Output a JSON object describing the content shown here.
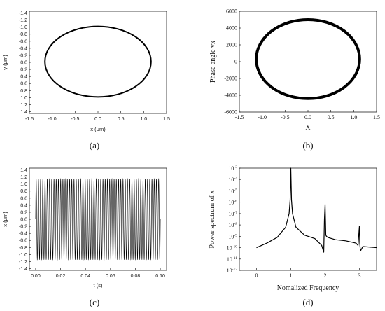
{
  "chart_data": [
    {
      "id": "a",
      "type": "line",
      "caption": "(a)",
      "xlabel": "x (μm)",
      "ylabel": "y (μm)",
      "xlim": [
        -1.5,
        1.5
      ],
      "ylim": [
        1.45,
        -1.45
      ],
      "y_axis_inverted": true,
      "xticks": [
        -1.5,
        -1.0,
        -0.5,
        0.0,
        0.5,
        1.0,
        1.5
      ],
      "xtick_labels": [
        "-1.5",
        "-1.0",
        "-0.5",
        "0.0",
        "0.5",
        "1.0",
        "1.5"
      ],
      "yticks": [
        -1.4,
        -1.2,
        -1.0,
        -0.8,
        -0.6,
        -0.4,
        -0.2,
        0.0,
        0.2,
        0.4,
        0.6,
        0.8,
        1.0,
        1.2,
        1.4
      ],
      "ytick_labels": [
        "-1.4",
        "-1.2",
        "-1.0",
        "-0.8",
        "-0.6",
        "-0.4",
        "-0.2",
        "0.0",
        "0.2",
        "0.4",
        "0.6",
        "0.8",
        "1.0",
        "1.2",
        "1.4"
      ],
      "series": [
        {
          "shape": "ellipse",
          "center": [
            0.0,
            -0.02
          ],
          "x_radius": 1.16,
          "y_radius": 1.0
        }
      ],
      "grid": false
    },
    {
      "id": "b",
      "type": "line",
      "caption": "(b)",
      "xlabel": "X",
      "ylabel": "Phase angle vx",
      "xlim": [
        -1.5,
        1.5
      ],
      "ylim": [
        -6000,
        6000
      ],
      "xticks": [
        -1.5,
        -1.0,
        -0.5,
        0.0,
        0.5,
        1.0,
        1.5
      ],
      "xtick_labels": [
        "-1.5",
        "-1.0",
        "-0.5",
        "0.0",
        "0.5",
        "1.0",
        "1.5"
      ],
      "yticks": [
        -6000,
        -4000,
        -2000,
        0,
        2000,
        4000,
        6000
      ],
      "ytick_labels": [
        "-6000",
        "-4000",
        "-2000",
        "0",
        "2000",
        "4000",
        "6000"
      ],
      "series": [
        {
          "shape": "ellipse",
          "center": [
            0.0,
            300
          ],
          "x_radius": 1.13,
          "y_radius": 4700
        }
      ],
      "grid": false
    },
    {
      "id": "c",
      "type": "line",
      "caption": "(c)",
      "xlabel": "t (s)",
      "ylabel": "x (μm)",
      "xlim": [
        -0.005,
        0.105
      ],
      "ylim": [
        -1.45,
        1.45
      ],
      "xticks": [
        0.0,
        0.02,
        0.04,
        0.06,
        0.08,
        0.1
      ],
      "xtick_labels": [
        "0.00",
        "0.02",
        "0.04",
        "0.06",
        "0.08",
        "0.10"
      ],
      "yticks": [
        -1.4,
        -1.2,
        -1.0,
        -0.8,
        -0.6,
        -0.4,
        -0.2,
        0.0,
        0.2,
        0.4,
        0.6,
        0.8,
        1.0,
        1.2,
        1.4
      ],
      "ytick_labels": [
        "-1.4",
        "-1.2",
        "-1.0",
        "-0.8",
        "-0.6",
        "-0.4",
        "-0.2",
        "0.0",
        "0.2",
        "0.4",
        "0.6",
        "0.8",
        "1.0",
        "1.2",
        "1.4"
      ],
      "series": [
        {
          "shape": "sinusoid",
          "t_start": 0.0,
          "t_end": 0.1,
          "amplitude": 1.15,
          "frequency_hz": 560
        }
      ],
      "grid": false
    },
    {
      "id": "d",
      "type": "line",
      "caption": "(d)",
      "xlabel": "Nomalized Frequency",
      "ylabel": "Power spectrum of x",
      "y_scale": "log",
      "xlim": [
        -0.5,
        3.5
      ],
      "ylim_exp": [
        -12,
        -3
      ],
      "xticks": [
        0,
        1,
        2,
        3
      ],
      "xtick_labels": [
        "0",
        "1",
        "2",
        "3"
      ],
      "yticks_exp": [
        -3,
        -4,
        -5,
        -6,
        -7,
        -8,
        -9,
        -10,
        -11,
        -12
      ],
      "ytick_base": "10",
      "series": [
        {
          "x": [
            0.0,
            0.3,
            0.6,
            0.85,
            0.95,
            0.98,
            1.0,
            1.02,
            1.05,
            1.15,
            1.4,
            1.7,
            1.9,
            1.96,
            1.98,
            2.0,
            2.01,
            2.02,
            2.04,
            2.08,
            2.3,
            2.6,
            2.9,
            2.96,
            2.99,
            3.0,
            3.01,
            3.03,
            3.1,
            3.3,
            3.5
          ],
          "y_exp": [
            -10.0,
            -9.6,
            -9.1,
            -8.2,
            -7.0,
            -5.8,
            -3.0,
            -5.8,
            -7.0,
            -8.2,
            -8.9,
            -9.2,
            -9.8,
            -10.4,
            -7.5,
            -6.2,
            -7.5,
            -8.9,
            -9.0,
            -9.1,
            -9.3,
            -9.4,
            -9.6,
            -9.8,
            -8.5,
            -8.1,
            -9.6,
            -10.3,
            -9.9,
            -9.95,
            -10.0
          ]
        }
      ],
      "grid": false
    }
  ]
}
